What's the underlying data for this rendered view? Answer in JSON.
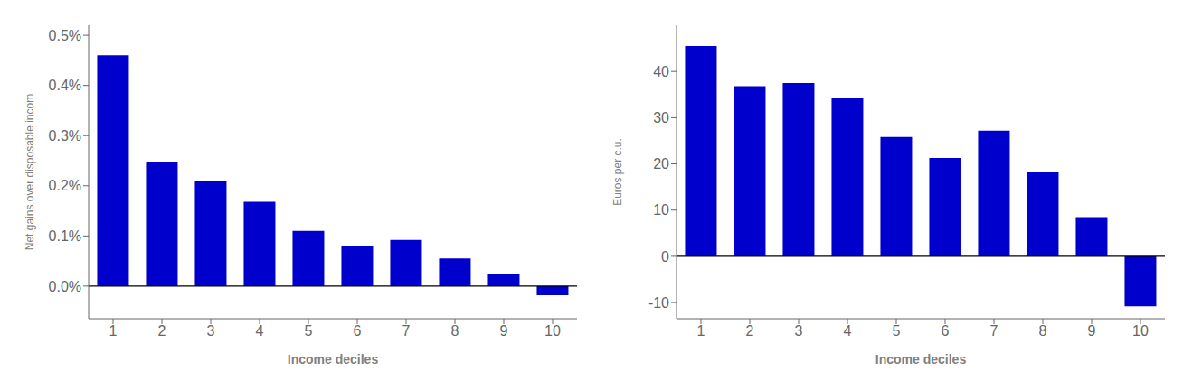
{
  "chart_data": [
    {
      "type": "bar",
      "categories": [
        "1",
        "2",
        "3",
        "4",
        "5",
        "6",
        "7",
        "8",
        "9",
        "10"
      ],
      "values": [
        0.0046,
        0.00248,
        0.0021,
        0.00168,
        0.0011,
        0.0008,
        0.00092,
        0.00055,
        0.00025,
        -0.00018
      ],
      "color": "#0000cc",
      "xlabel": "Income deciles",
      "ylabel": "Net gains over disposable incom",
      "ylim": [
        -0.00065,
        0.0052
      ],
      "yticks": [
        {
          "value": 0.0,
          "label": "0.0%"
        },
        {
          "value": 0.001,
          "label": "0.1%"
        },
        {
          "value": 0.002,
          "label": "0.2%"
        },
        {
          "value": 0.003,
          "label": "0.3%"
        },
        {
          "value": 0.004,
          "label": "0.4%"
        },
        {
          "value": 0.005,
          "label": "0.5%"
        }
      ],
      "grid": false
    },
    {
      "type": "bar",
      "categories": [
        "1",
        "2",
        "3",
        "4",
        "5",
        "6",
        "7",
        "8",
        "9",
        "10"
      ],
      "values": [
        45.5,
        36.8,
        37.5,
        34.2,
        25.8,
        21.3,
        27.2,
        18.3,
        8.5,
        -10.8
      ],
      "color": "#0000cc",
      "xlabel": "Income deciles",
      "ylabel": "Euros per c.u.",
      "ylim": [
        -13.5,
        50
      ],
      "yticks": [
        -10,
        0,
        10,
        20,
        30,
        40
      ],
      "grid": false
    }
  ]
}
